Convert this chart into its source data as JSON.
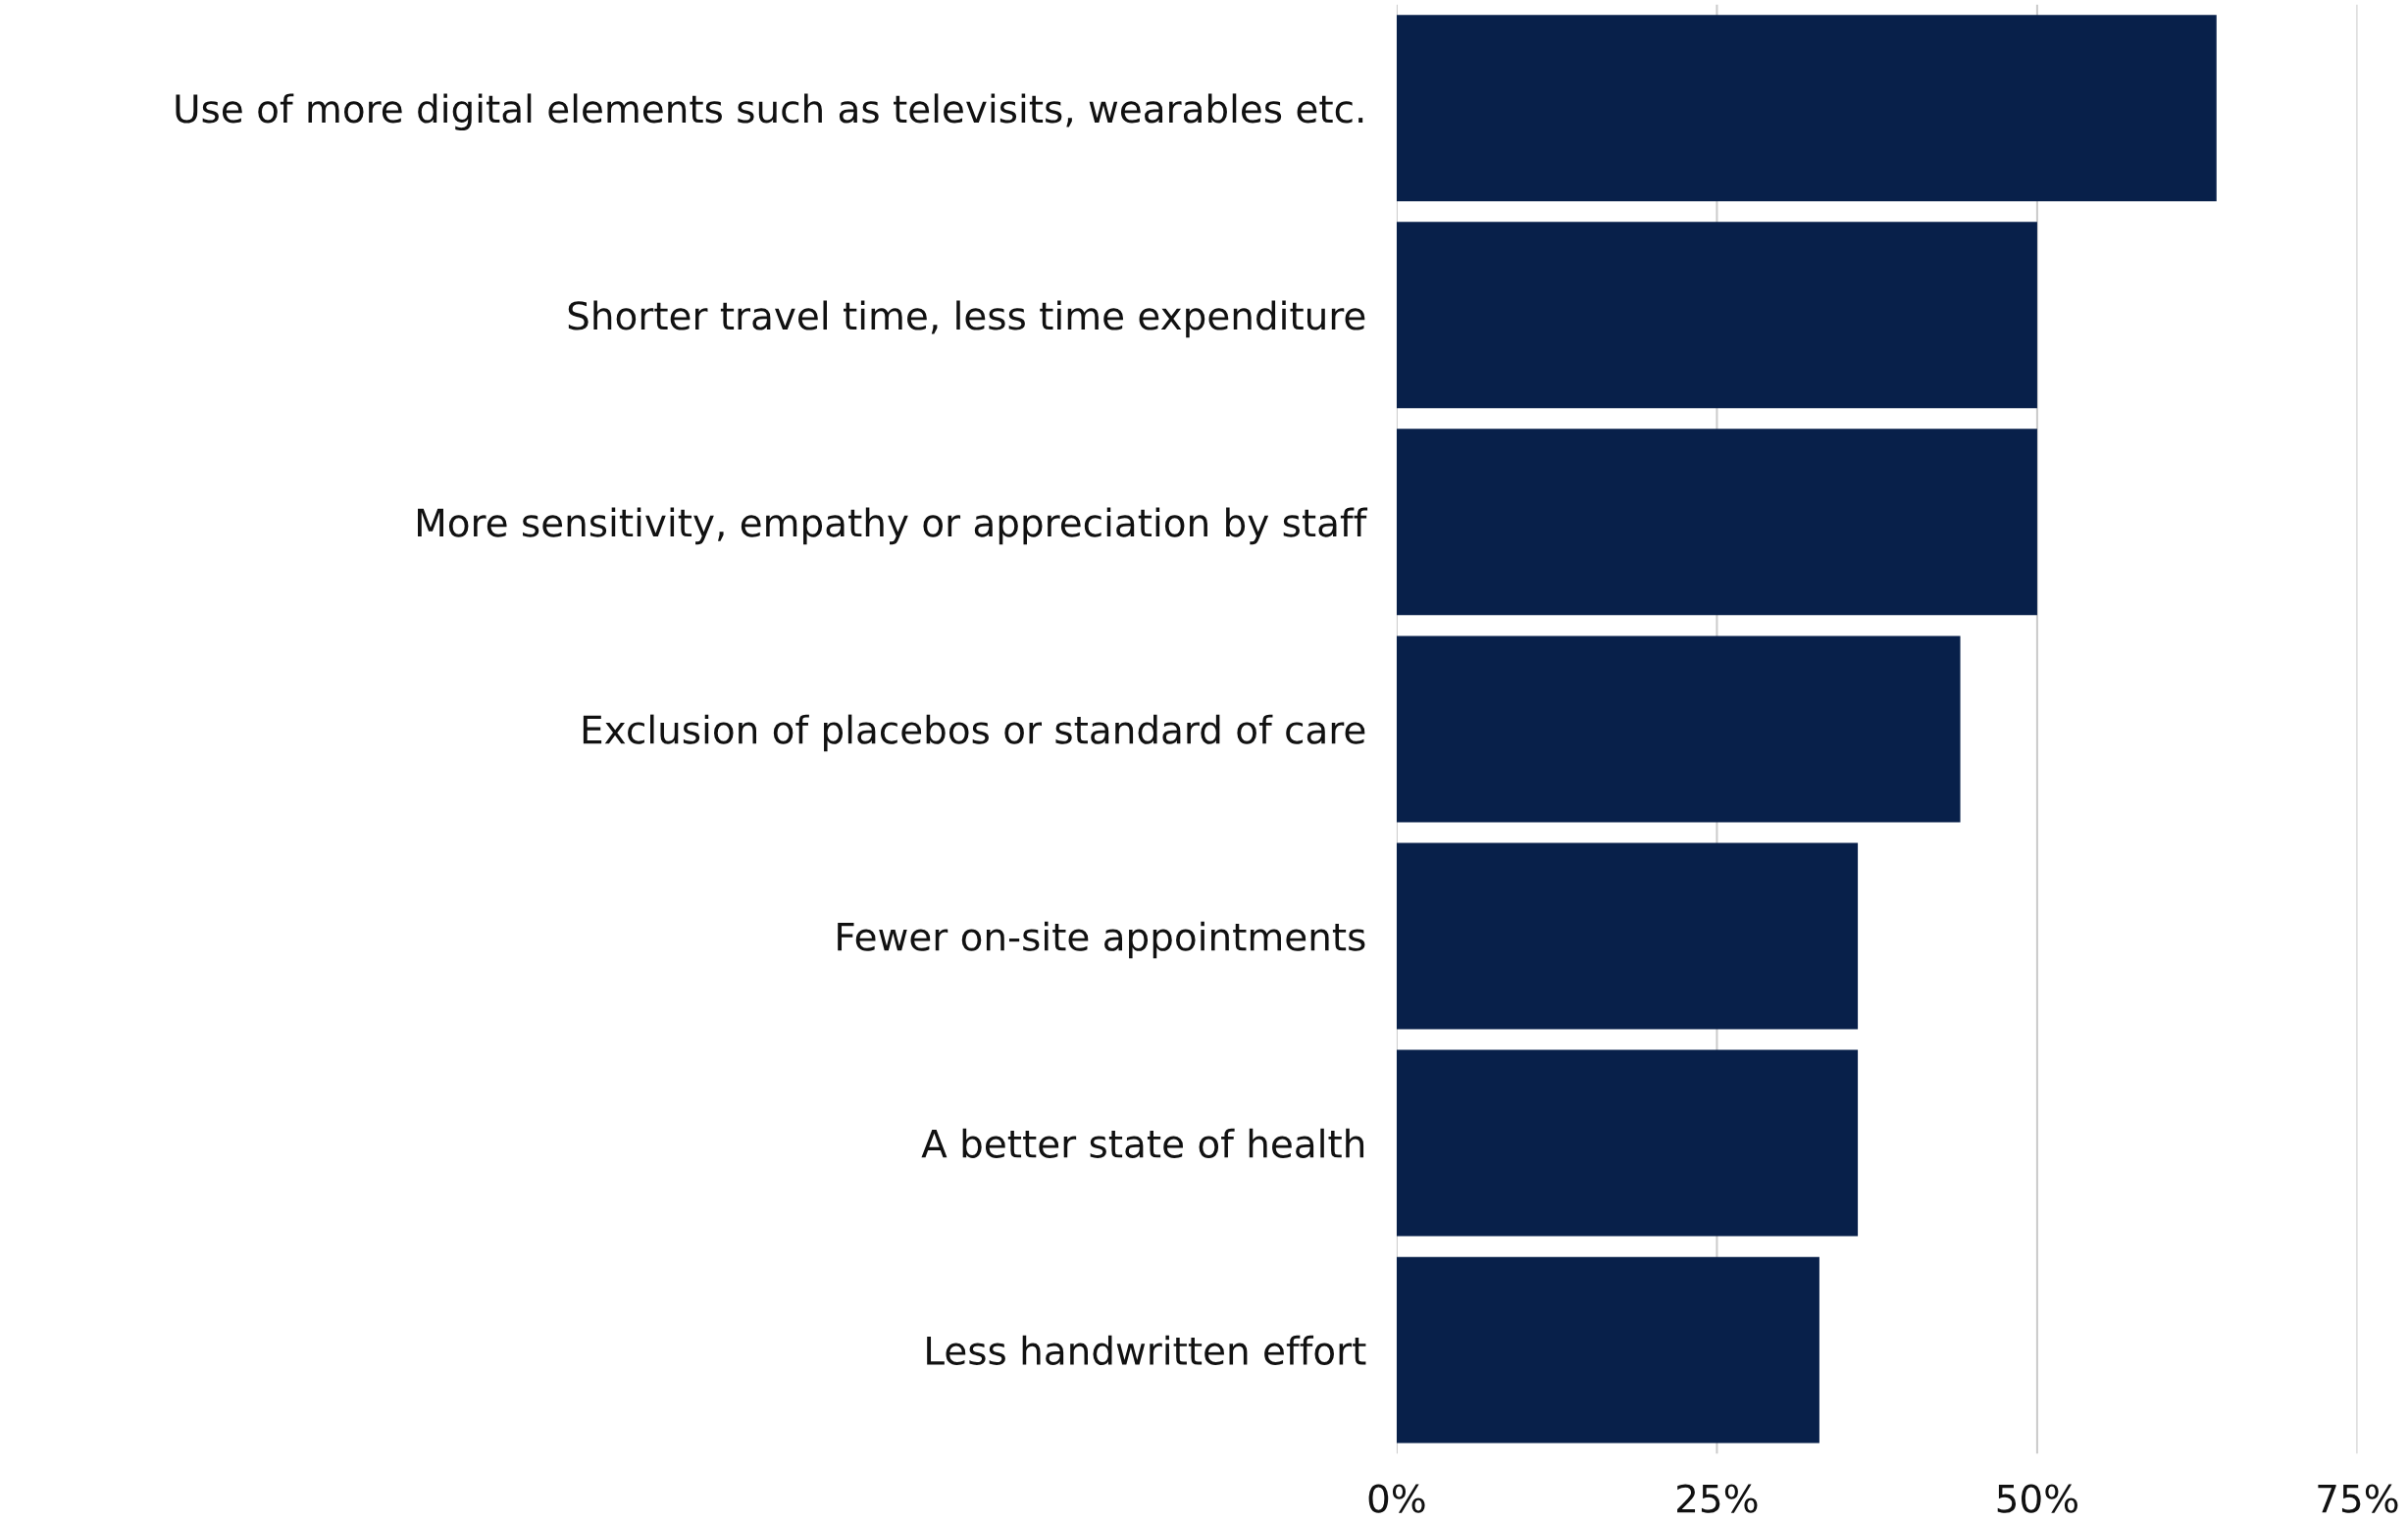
{
  "chart_data": {
    "type": "bar",
    "orientation": "horizontal",
    "categories": [
      "Use of more digital elements such as televisits, wearables etc.",
      "Shorter travel time, less time expenditure",
      "More sensitivity, empathy or appreciation by staff",
      "Exclusion of placebos or standard of care",
      "Fewer on-site appointments",
      "A better state of health",
      "Less handwritten effort"
    ],
    "values": [
      64,
      50,
      50,
      44,
      36,
      36,
      33
    ],
    "color": "#08204a",
    "xlim": [
      0,
      75
    ],
    "xticks": [
      {
        "value": 0,
        "label": "0%"
      },
      {
        "value": 25,
        "label": "25%"
      },
      {
        "value": 50,
        "label": "50%"
      },
      {
        "value": 75,
        "label": "75%"
      }
    ],
    "grid": "x"
  }
}
